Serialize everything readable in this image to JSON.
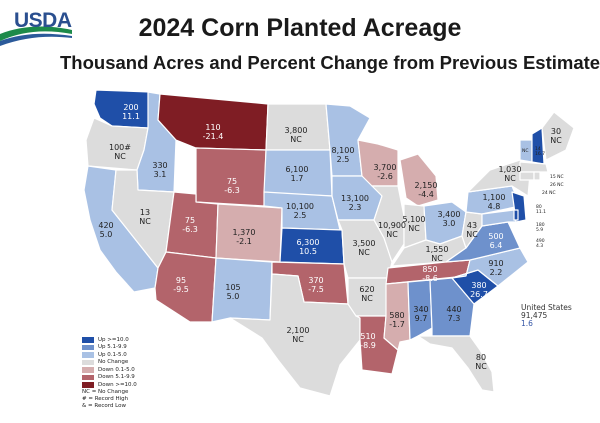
{
  "title": "2024 Corn Planted Acreage",
  "subtitle": "Thousand Acres and Percent Change from Previous Estimate",
  "logo_text": "USDA",
  "colors": {
    "up10": "#1f4fa8",
    "up5": "#6e91cc",
    "up01": "#a9c1e4",
    "nochange": "#dcdcdc",
    "down01": "#d5adae",
    "down5": "#b3646b",
    "down10": "#7f1d24",
    "outline": "#ffffff"
  },
  "legend": {
    "items": [
      {
        "label": "Up >=10.0",
        "color": "#1f4fa8"
      },
      {
        "label": "Up 5.1-9.9",
        "color": "#6e91cc"
      },
      {
        "label": "Up 0.1-5.0",
        "color": "#a9c1e4"
      },
      {
        "label": "No Change",
        "color": "#dcdcdc"
      },
      {
        "label": "Down 0.1-5.0",
        "color": "#d5adae"
      },
      {
        "label": "Down 5.1-9.9",
        "color": "#b3646b"
      },
      {
        "label": "Down >=10.0",
        "color": "#7f1d24"
      }
    ],
    "notes": [
      "NC = No Change",
      "# = Record High",
      "& = Record Low"
    ]
  },
  "us_total": {
    "label": "United States",
    "value": "91,475",
    "pct": "1.6"
  },
  "states": {
    "WA": {
      "value": "200",
      "change": "11.1"
    },
    "OR": {
      "value": "100#",
      "change": "NC"
    },
    "CA": {
      "value": "420",
      "change": "5.0"
    },
    "ID": {
      "value": "330",
      "change": "3.1"
    },
    "NV": {
      "value": "13",
      "change": "NC"
    },
    "MT": {
      "value": "110",
      "change": "-21.4"
    },
    "WY": {
      "value": "75",
      "change": "-6.3"
    },
    "UT": {
      "value": "75",
      "change": "-6.3"
    },
    "CO": {
      "value": "1,370",
      "change": "-2.1"
    },
    "AZ": {
      "value": "95",
      "change": "-9.5"
    },
    "NM": {
      "value": "105",
      "change": "5.0"
    },
    "ND": {
      "value": "3,800",
      "change": "NC"
    },
    "SD": {
      "value": "6,100",
      "change": "1.7"
    },
    "NE": {
      "value": "10,100",
      "change": "2.5"
    },
    "KS": {
      "value": "6,300",
      "change": "10.5"
    },
    "OK": {
      "value": "370",
      "change": "-7.5"
    },
    "TX": {
      "value": "2,100",
      "change": "NC"
    },
    "MN": {
      "value": "8,100",
      "change": "2.5"
    },
    "IA": {
      "value": "13,100",
      "change": "2.3"
    },
    "MO": {
      "value": "3,500",
      "change": "NC"
    },
    "AR": {
      "value": "620",
      "change": "NC"
    },
    "LA": {
      "value": "510",
      "change": "-8.9"
    },
    "WI": {
      "value": "3,700",
      "change": "-2.6"
    },
    "IL": {
      "value": "10,900",
      "change": "NC"
    },
    "MI": {
      "value": "2,150",
      "change": "-4.4"
    },
    "IN": {
      "value": "5,100",
      "change": "NC"
    },
    "OH": {
      "value": "3,400",
      "change": "3.0"
    },
    "KY": {
      "value": "1,550",
      "change": "NC"
    },
    "TN": {
      "value": "850",
      "change": "-8.6"
    },
    "MS": {
      "value": "580",
      "change": "-1.7"
    },
    "AL": {
      "value": "340",
      "change": "9.7"
    },
    "GA": {
      "value": "440",
      "change": "7.3"
    },
    "FL": {
      "value": "80",
      "change": "NC"
    },
    "SC": {
      "value": "380",
      "change": "26.7"
    },
    "NC": {
      "value": "910",
      "change": "2.2"
    },
    "VA": {
      "value": "500",
      "change": "6.4"
    },
    "WV": {
      "value": "43",
      "change": "NC"
    },
    "PA": {
      "value": "1,100",
      "change": "4.8"
    },
    "NY": {
      "value": "1,030",
      "change": "NC"
    },
    "ME": {
      "value": "30",
      "change": "NC"
    },
    "VT": {
      "value": "NC",
      "change": ""
    },
    "NH": {
      "value": "14",
      "change": "16.7"
    },
    "NE_small": [
      {
        "value": "15",
        "change": "NC"
      },
      {
        "value": "26",
        "change": "NC"
      },
      {
        "value": "24",
        "change": "NC"
      },
      {
        "value": "80",
        "change": "11.1"
      },
      {
        "value": "180",
        "change": "5.9"
      },
      {
        "value": "490",
        "change": "4.3"
      }
    ]
  }
}
